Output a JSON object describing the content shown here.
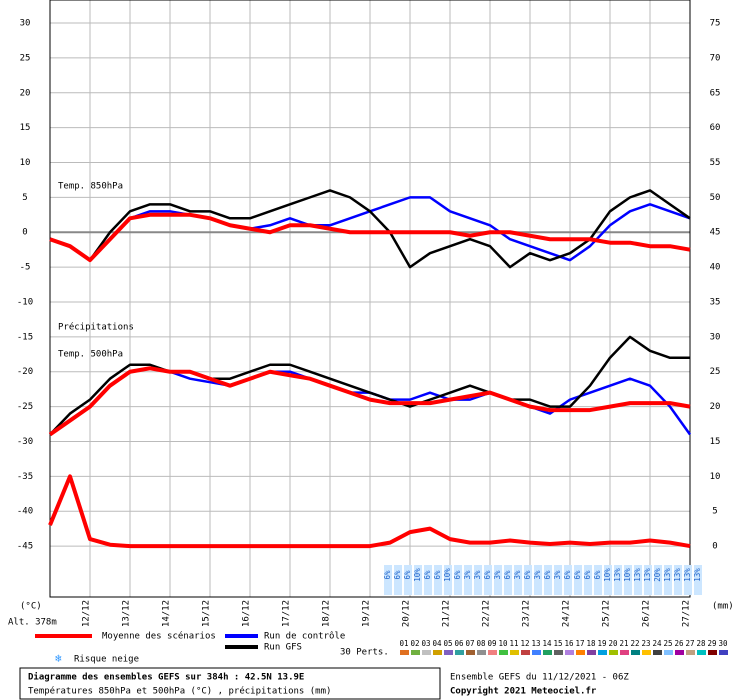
{
  "chart_data": {
    "type": "line",
    "panel_labels": [
      "Temp. 850hPa",
      "Précipitations",
      "Temp. 500hPa"
    ],
    "left_unit": "(°C)",
    "altitude": "Alt. 378m",
    "right_unit": "(mm)",
    "xlim": [
      11,
      27
    ],
    "xticks": [
      {
        "value": 12,
        "label": "12/12"
      },
      {
        "value": 13,
        "label": "13/12"
      },
      {
        "value": 14,
        "label": "14/12"
      },
      {
        "value": 15,
        "label": "15/12"
      },
      {
        "value": 16,
        "label": "16/12"
      },
      {
        "value": 17,
        "label": "17/12"
      },
      {
        "value": 18,
        "label": "18/12"
      },
      {
        "value": 19,
        "label": "19/12"
      },
      {
        "value": 20,
        "label": "20/12"
      },
      {
        "value": 21,
        "label": "21/12"
      },
      {
        "value": 22,
        "label": "22/12"
      },
      {
        "value": 23,
        "label": "23/12"
      },
      {
        "value": 24,
        "label": "24/12"
      },
      {
        "value": 25,
        "label": "25/12"
      },
      {
        "value": 26,
        "label": "26/12"
      },
      {
        "value": 27,
        "label": "27/12"
      }
    ],
    "ylim": [
      -52.3,
      33.3
    ],
    "yticks": [
      30,
      25,
      20,
      15,
      10,
      5,
      0,
      -5,
      -10,
      -15,
      -20,
      -25,
      -30,
      -35,
      -40,
      -45
    ],
    "y2lim": [
      -7.3,
      78.3
    ],
    "y2ticks": [
      75,
      70,
      65,
      60,
      55,
      50,
      45,
      40,
      35,
      30,
      25,
      20,
      15,
      10,
      5,
      0
    ],
    "grid": true,
    "x": [
      11,
      11.5,
      12,
      12.5,
      13,
      13.5,
      14,
      14.5,
      15,
      15.5,
      16,
      16.5,
      17,
      17.5,
      18,
      18.5,
      19,
      19.5,
      20,
      20.5,
      21,
      21.5,
      22,
      22.5,
      23,
      23.5,
      24,
      24.5,
      25,
      25.5,
      26,
      26.5,
      27
    ],
    "series": [
      {
        "name": "Run de contrôle",
        "color": "#0000ff",
        "t850": [
          -1,
          -2,
          -4,
          -1,
          2,
          3,
          3,
          2.5,
          2,
          1,
          0.5,
          1,
          2,
          1,
          1,
          2,
          3,
          4,
          5,
          5,
          3,
          2,
          1,
          -1,
          -2,
          -3,
          -4,
          -2,
          1,
          3,
          4,
          3,
          2
        ],
        "t500": [
          -29,
          -27,
          -25,
          -22,
          -20,
          -19.5,
          -20,
          -21,
          -21.5,
          -22,
          -21,
          -20,
          -20,
          -21,
          -22,
          -23,
          -23,
          -24,
          -24,
          -23,
          -24,
          -24,
          -23,
          -24,
          -25,
          -26,
          -24,
          -23,
          -22,
          -21,
          -22,
          -25,
          -29
        ]
      },
      {
        "name": "Run GFS",
        "color": "#000000",
        "t850": [
          -1,
          -2,
          -4,
          0,
          3,
          4,
          4,
          3,
          3,
          2,
          2,
          3,
          4,
          5,
          6,
          5,
          3,
          0,
          -5,
          -3,
          -2,
          -1,
          -2,
          -5,
          -3,
          -4,
          -3,
          -1,
          3,
          5,
          6,
          4,
          2
        ],
        "t500": [
          -29,
          -26,
          -24,
          -21,
          -19,
          -19,
          -20,
          -20,
          -21,
          -21,
          -20,
          -19,
          -19,
          -20,
          -21,
          -22,
          -23,
          -24,
          -25,
          -24,
          -23,
          -22,
          -23,
          -24,
          -24,
          -25,
          -25,
          -22,
          -18,
          -15,
          -17,
          -18,
          -18
        ]
      },
      {
        "name": "Moyenne des scénarios",
        "color": "#ff0000",
        "t850": [
          -1,
          -2,
          -4,
          -1,
          2,
          2.5,
          2.5,
          2.5,
          2,
          1,
          0.5,
          0,
          1,
          1,
          0.5,
          0,
          0,
          0,
          0,
          0,
          0,
          -0.5,
          0,
          0,
          -0.5,
          -1,
          -1,
          -1,
          -1.5,
          -1.5,
          -2,
          -2,
          -2.5
        ],
        "t500": [
          -29,
          -27,
          -25,
          -22,
          -20,
          -19.5,
          -20,
          -20,
          -21,
          -22,
          -21,
          -20,
          -20.5,
          -21,
          -22,
          -23,
          -24,
          -24.5,
          -24.5,
          -24.5,
          -24,
          -23.5,
          -23,
          -24,
          -25,
          -25.5,
          -25.5,
          -25.5,
          -25,
          -24.5,
          -24.5,
          -24.5,
          -25
        ],
        "precip": [
          3,
          10,
          1,
          0.2,
          0,
          0,
          0,
          0,
          0,
          0,
          0,
          0,
          0,
          0,
          0,
          0,
          0,
          0.5,
          2,
          2.5,
          1,
          0.5,
          0.5,
          0.8,
          0.5,
          0.3,
          0.5,
          0.3,
          0.5,
          0.5,
          0.8,
          0.5,
          0
        ]
      }
    ],
    "snow_risk": {
      "label": "Risque neige",
      "x0": 19.5,
      "step": 0.25,
      "values": [
        "6%",
        "6%",
        "6%",
        "10%",
        "6%",
        "6%",
        "10%",
        "6%",
        "3%",
        "3%",
        "6%",
        "3%",
        "6%",
        "3%",
        "6%",
        "3%",
        "6%",
        "3%",
        "6%",
        "6%",
        "6%",
        "6%",
        "10%",
        "13%",
        "10%",
        "13%",
        "13%",
        "20%",
        "13%",
        "13%",
        "13%",
        "13%"
      ]
    },
    "perturbations": {
      "label": "30 Perts.",
      "names": [
        "01",
        "02",
        "03",
        "04",
        "05",
        "06",
        "07",
        "08",
        "09",
        "10",
        "11",
        "12",
        "13",
        "14",
        "15",
        "16",
        "17",
        "18",
        "19",
        "20",
        "21",
        "22",
        "23",
        "24",
        "25",
        "26",
        "27",
        "28",
        "29",
        "30"
      ],
      "colors": [
        "#e07020",
        "#70b040",
        "#c0c0c0",
        "#d0a000",
        "#8060c0",
        "#30a0a0",
        "#a06030",
        "#909090",
        "#f08080",
        "#40c040",
        "#e0c000",
        "#c04040",
        "#4080ff",
        "#20a060",
        "#606060",
        "#b080e0",
        "#ff8000",
        "#8040a0",
        "#00a0e0",
        "#a0c000",
        "#e04080",
        "#008080",
        "#ffc000",
        "#404040",
        "#80c0ff",
        "#a000a0",
        "#c0a080",
        "#00c0c0",
        "#800000",
        "#4040c0"
      ]
    },
    "footer": {
      "title": "Diagramme des ensembles GEFS sur 384h : 42.5N 13.9E",
      "subtitle": "Températures 850hPa et 500hPa (°C) , précipitations (mm)",
      "run": "Ensemble GEFS du 11/12/2021 - 06Z",
      "copyright": "Copyright 2021 Meteociel.fr"
    }
  }
}
